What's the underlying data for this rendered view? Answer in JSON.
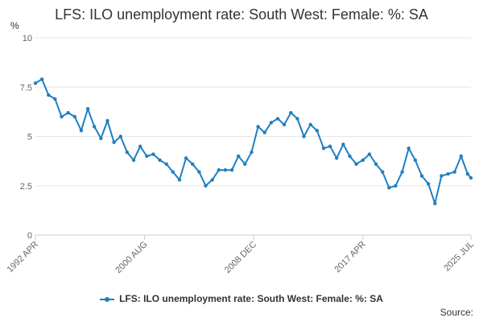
{
  "chart_data": {
    "type": "line",
    "title": "LFS: ILO unemployment rate: South West: Female: %: SA",
    "ylabel": "%",
    "xlabel": "",
    "ylim": [
      0,
      10
    ],
    "y_ticks": [
      0,
      2.5,
      5,
      7.5,
      10
    ],
    "x_tick_labels": [
      "1992 APR",
      "2000 AUG",
      "2008 DEC",
      "2017 APR",
      "2025 JUL"
    ],
    "grid": true,
    "legend_position": "bottom",
    "series_color": "#1f7fc1",
    "series": [
      {
        "name": "LFS: ILO unemployment rate: South West: Female: %: SA",
        "x": [
          "1992 APR",
          "1992 OCT",
          "1993 APR",
          "1993 OCT",
          "1994 APR",
          "1994 OCT",
          "1995 APR",
          "1995 OCT",
          "1996 APR",
          "1996 OCT",
          "1997 APR",
          "1997 OCT",
          "1998 APR",
          "1998 OCT",
          "1999 APR",
          "1999 OCT",
          "2000 APR",
          "2000 OCT",
          "2001 APR",
          "2001 OCT",
          "2002 APR",
          "2002 OCT",
          "2003 APR",
          "2003 OCT",
          "2004 APR",
          "2004 OCT",
          "2005 APR",
          "2005 OCT",
          "2006 APR",
          "2006 OCT",
          "2007 APR",
          "2007 OCT",
          "2008 APR",
          "2008 OCT",
          "2009 APR",
          "2009 OCT",
          "2010 APR",
          "2010 OCT",
          "2011 APR",
          "2011 OCT",
          "2012 APR",
          "2012 OCT",
          "2013 APR",
          "2013 OCT",
          "2014 APR",
          "2014 OCT",
          "2015 APR",
          "2015 OCT",
          "2016 APR",
          "2016 OCT",
          "2017 APR",
          "2017 OCT",
          "2018 APR",
          "2018 OCT",
          "2019 APR",
          "2019 OCT",
          "2020 APR",
          "2020 OCT",
          "2021 APR",
          "2021 OCT",
          "2022 APR",
          "2022 OCT",
          "2023 APR",
          "2023 OCT",
          "2024 APR",
          "2024 OCT",
          "2025 APR",
          "2025 JUL"
        ],
        "values": [
          7.7,
          7.9,
          7.1,
          6.9,
          6.0,
          6.2,
          6.0,
          5.3,
          6.4,
          5.5,
          4.9,
          5.8,
          4.7,
          5.0,
          4.2,
          3.8,
          4.5,
          4.0,
          4.1,
          3.8,
          3.6,
          3.2,
          2.8,
          3.9,
          3.6,
          3.2,
          2.5,
          2.8,
          3.3,
          3.3,
          3.3,
          4.0,
          3.6,
          4.2,
          5.5,
          5.2,
          5.7,
          5.9,
          5.6,
          6.2,
          5.9,
          5.0,
          5.6,
          5.3,
          4.4,
          4.5,
          3.9,
          4.6,
          4.0,
          3.6,
          3.8,
          4.1,
          3.6,
          3.2,
          2.4,
          2.5,
          3.2,
          4.4,
          3.8,
          3.0,
          2.6,
          1.6,
          3.0,
          3.1,
          3.2,
          4.0,
          3.1,
          2.9
        ]
      }
    ]
  },
  "legend": {
    "label": "LFS: ILO unemployment rate: South West: Female: %: SA"
  },
  "source": {
    "label": "Source:"
  }
}
